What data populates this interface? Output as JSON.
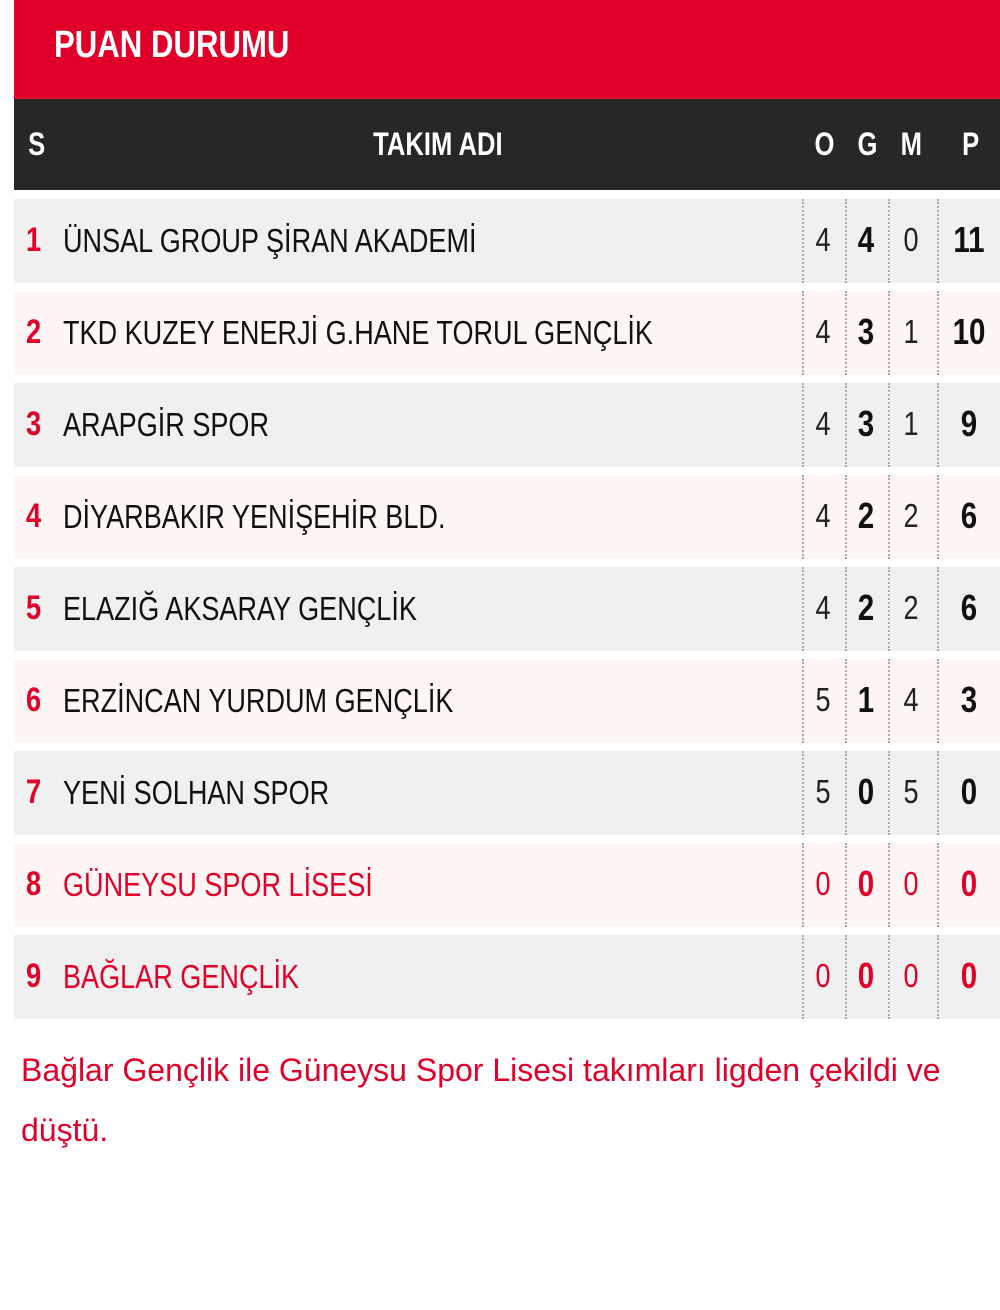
{
  "title": "PUAN DURUMU",
  "headers": {
    "s": "S",
    "team": "TAKIM ADI",
    "o": "O",
    "g": "G",
    "m": "M",
    "p": "P"
  },
  "colors": {
    "accent": "#e1002a",
    "header_bg": "#272727"
  },
  "rows": [
    {
      "pos": "1",
      "team": "ÜNSAL GROUP ŞİRAN AKADEMİ",
      "o": "4",
      "g": "4",
      "m": "0",
      "p": "11",
      "withdrawn": false
    },
    {
      "pos": "2",
      "team": "TKD KUZEY ENERJİ G.HANE TORUL GENÇLİK",
      "o": "4",
      "g": "3",
      "m": "1",
      "p": "10",
      "withdrawn": false
    },
    {
      "pos": "3",
      "team": "ARAPGİR SPOR",
      "o": "4",
      "g": "3",
      "m": "1",
      "p": "9",
      "withdrawn": false
    },
    {
      "pos": "4",
      "team": "DİYARBAKIR YENİŞEHİR BLD.",
      "o": "4",
      "g": "2",
      "m": "2",
      "p": "6",
      "withdrawn": false
    },
    {
      "pos": "5",
      "team": "ELAZIĞ AKSARAY GENÇLİK",
      "o": "4",
      "g": "2",
      "m": "2",
      "p": "6",
      "withdrawn": false
    },
    {
      "pos": "6",
      "team": "ERZİNCAN YURDUM GENÇLİK",
      "o": "5",
      "g": "1",
      "m": "4",
      "p": "3",
      "withdrawn": false
    },
    {
      "pos": "7",
      "team": "YENİ SOLHAN SPOR",
      "o": "5",
      "g": "0",
      "m": "5",
      "p": "0",
      "withdrawn": false
    },
    {
      "pos": "8",
      "team": "GÜNEYSU SPOR LİSESİ",
      "o": "0",
      "g": "0",
      "m": "0",
      "p": "0",
      "withdrawn": true
    },
    {
      "pos": "9",
      "team": "BAĞLAR GENÇLİK",
      "o": "0",
      "g": "0",
      "m": "0",
      "p": "0",
      "withdrawn": true
    }
  ],
  "note": "Bağlar Gençlik ile Güneysu Spor Lisesi takımları ligden çekildi ve düştü."
}
